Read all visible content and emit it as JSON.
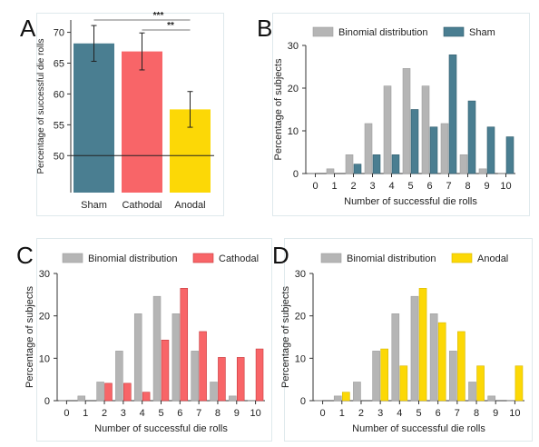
{
  "panels": {
    "A": {
      "letter": "A"
    },
    "B": {
      "letter": "B"
    },
    "C": {
      "letter": "C"
    },
    "D": {
      "letter": "D"
    }
  },
  "chart_data": [
    {
      "id": "A",
      "type": "bar",
      "title": "",
      "ylabel": "Percentage of successful die rolls",
      "xlabel": "",
      "categories": [
        "Sham",
        "Cathodal",
        "Anodal"
      ],
      "values": [
        68.2,
        66.9,
        57.5
      ],
      "errors": [
        2.9,
        3.0,
        2.9
      ],
      "colors": [
        "#4a7e91",
        "#f86568",
        "#fcd806"
      ],
      "ylim": [
        44,
        72
      ],
      "yticks": [
        50,
        55,
        60,
        65,
        70
      ],
      "reference_line": 50,
      "significance": [
        {
          "from": "Sham",
          "to": "Anodal",
          "label": "***"
        },
        {
          "from": "Cathodal",
          "to": "Anodal",
          "label": "**"
        }
      ]
    },
    {
      "id": "B",
      "type": "bar",
      "title": "",
      "xlabel": "Number of successful die rolls",
      "ylabel": "Percentage of subjects",
      "categories": [
        "0",
        "1",
        "2",
        "3",
        "4",
        "5",
        "6",
        "7",
        "8",
        "9",
        "10"
      ],
      "ylim": [
        0,
        30
      ],
      "yticks": [
        0,
        10,
        20,
        30
      ],
      "legend": "top",
      "series": [
        {
          "name": "Binomial distribution",
          "color": "#b5b5b5",
          "values": [
            0.1,
            1.1,
            4.4,
            11.7,
            20.5,
            24.6,
            20.5,
            11.7,
            4.4,
            1.1,
            0.1
          ]
        },
        {
          "name": "Sham",
          "color": "#4a7e91",
          "values": [
            0,
            0,
            2.2,
            4.4,
            4.4,
            15.0,
            10.9,
            27.8,
            17.0,
            10.9,
            8.6
          ]
        }
      ]
    },
    {
      "id": "C",
      "type": "bar",
      "title": "",
      "xlabel": "Number of successful die rolls",
      "ylabel": "Percentage of subjects",
      "categories": [
        "0",
        "1",
        "2",
        "3",
        "4",
        "5",
        "6",
        "7",
        "8",
        "9",
        "10"
      ],
      "ylim": [
        0,
        30
      ],
      "yticks": [
        0,
        10,
        20,
        30
      ],
      "legend": "top",
      "series": [
        {
          "name": "Binomial distribution",
          "color": "#b5b5b5",
          "values": [
            0.1,
            1.1,
            4.4,
            11.7,
            20.5,
            24.6,
            20.5,
            11.7,
            4.4,
            1.1,
            0.1
          ]
        },
        {
          "name": "Cathodal",
          "color": "#f86568",
          "values": [
            0,
            0,
            4.1,
            4.1,
            2.0,
            14.3,
            26.5,
            16.3,
            10.2,
            10.2,
            12.2
          ]
        }
      ]
    },
    {
      "id": "D",
      "type": "bar",
      "title": "",
      "xlabel": "Number of successful die rolls",
      "ylabel": "Percentage of subjects",
      "categories": [
        "0",
        "1",
        "2",
        "3",
        "4",
        "5",
        "6",
        "7",
        "8",
        "9",
        "10"
      ],
      "ylim": [
        0,
        30
      ],
      "yticks": [
        0,
        10,
        20,
        30
      ],
      "legend": "top",
      "series": [
        {
          "name": "Binomial distribution",
          "color": "#b5b5b5",
          "values": [
            0.1,
            1.1,
            4.4,
            11.7,
            20.5,
            24.6,
            20.5,
            11.7,
            4.4,
            1.1,
            0.1
          ]
        },
        {
          "name": "Anodal",
          "color": "#fcd806",
          "values": [
            0,
            2.0,
            0,
            12.2,
            8.2,
            26.5,
            18.4,
            16.3,
            8.2,
            0,
            8.2
          ]
        }
      ]
    }
  ]
}
